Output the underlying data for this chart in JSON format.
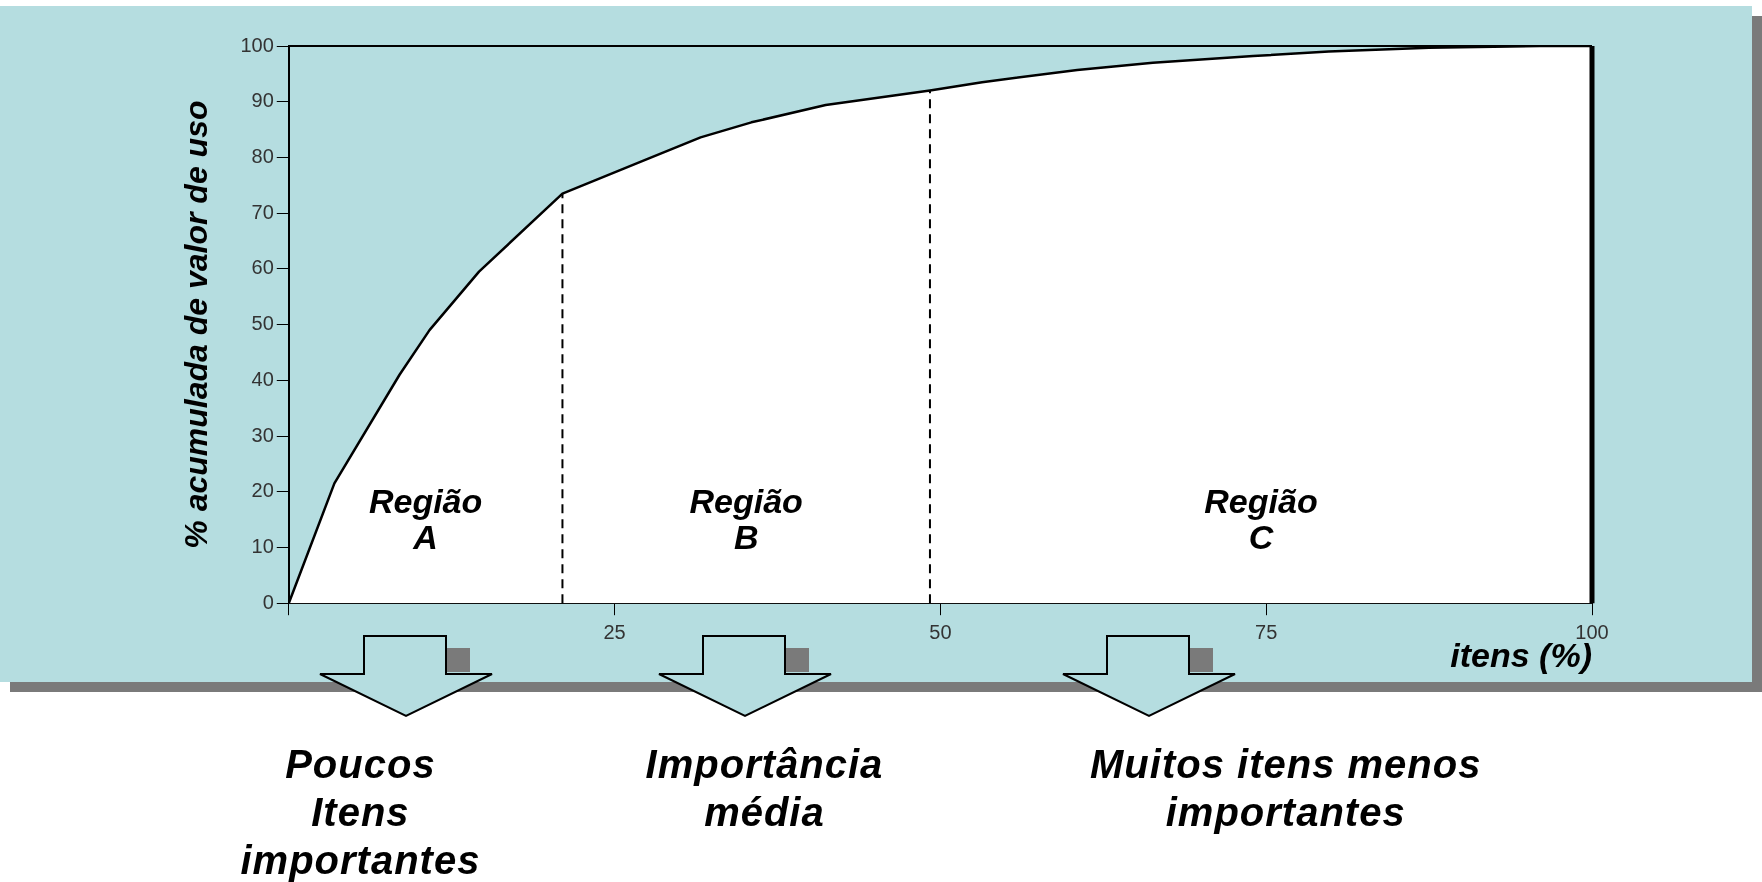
{
  "chart_data": {
    "type": "area",
    "xlabel": "itens (%)",
    "ylabel": "% acumulada de valor de uso",
    "x": [
      0,
      3.5,
      8.5,
      10.8,
      14.6,
      21,
      27.4,
      31.6,
      35.5,
      41.2,
      49.2,
      53.2,
      60.5,
      66.3,
      74,
      79.8,
      87.5,
      96,
      100
    ],
    "series": [
      {
        "color": "#000000",
        "values": [
          0,
          21.5,
          41,
          49,
          59.5,
          73.5,
          79.6,
          83.6,
          86.3,
          89.4,
          92,
          93.5,
          95.7,
          97,
          98.2,
          99,
          99.7,
          100,
          100
        ]
      }
    ],
    "xlim": [
      0,
      100
    ],
    "xticks": [
      {
        "value": 0,
        "label": null
      },
      25,
      50,
      75,
      100
    ],
    "ylim": [
      0,
      100
    ],
    "yticks": [
      0,
      10,
      20,
      30,
      40,
      50,
      60,
      70,
      80,
      90,
      100
    ],
    "ref_lines": [
      {
        "axis": "x",
        "value": 21,
        "line_style": "dashed",
        "color": "#000000"
      },
      {
        "axis": "x",
        "value": 49.2,
        "line_style": "dashed",
        "color": "#000000"
      }
    ],
    "annotations": [
      "Região\nA",
      "Região\nB",
      "Região\nC",
      "Poucos\nItens\nimportantes",
      "Importância\nmédia",
      "Muitos itens menos\nimportantes"
    ],
    "marker": "none",
    "line_style": "solid"
  }
}
